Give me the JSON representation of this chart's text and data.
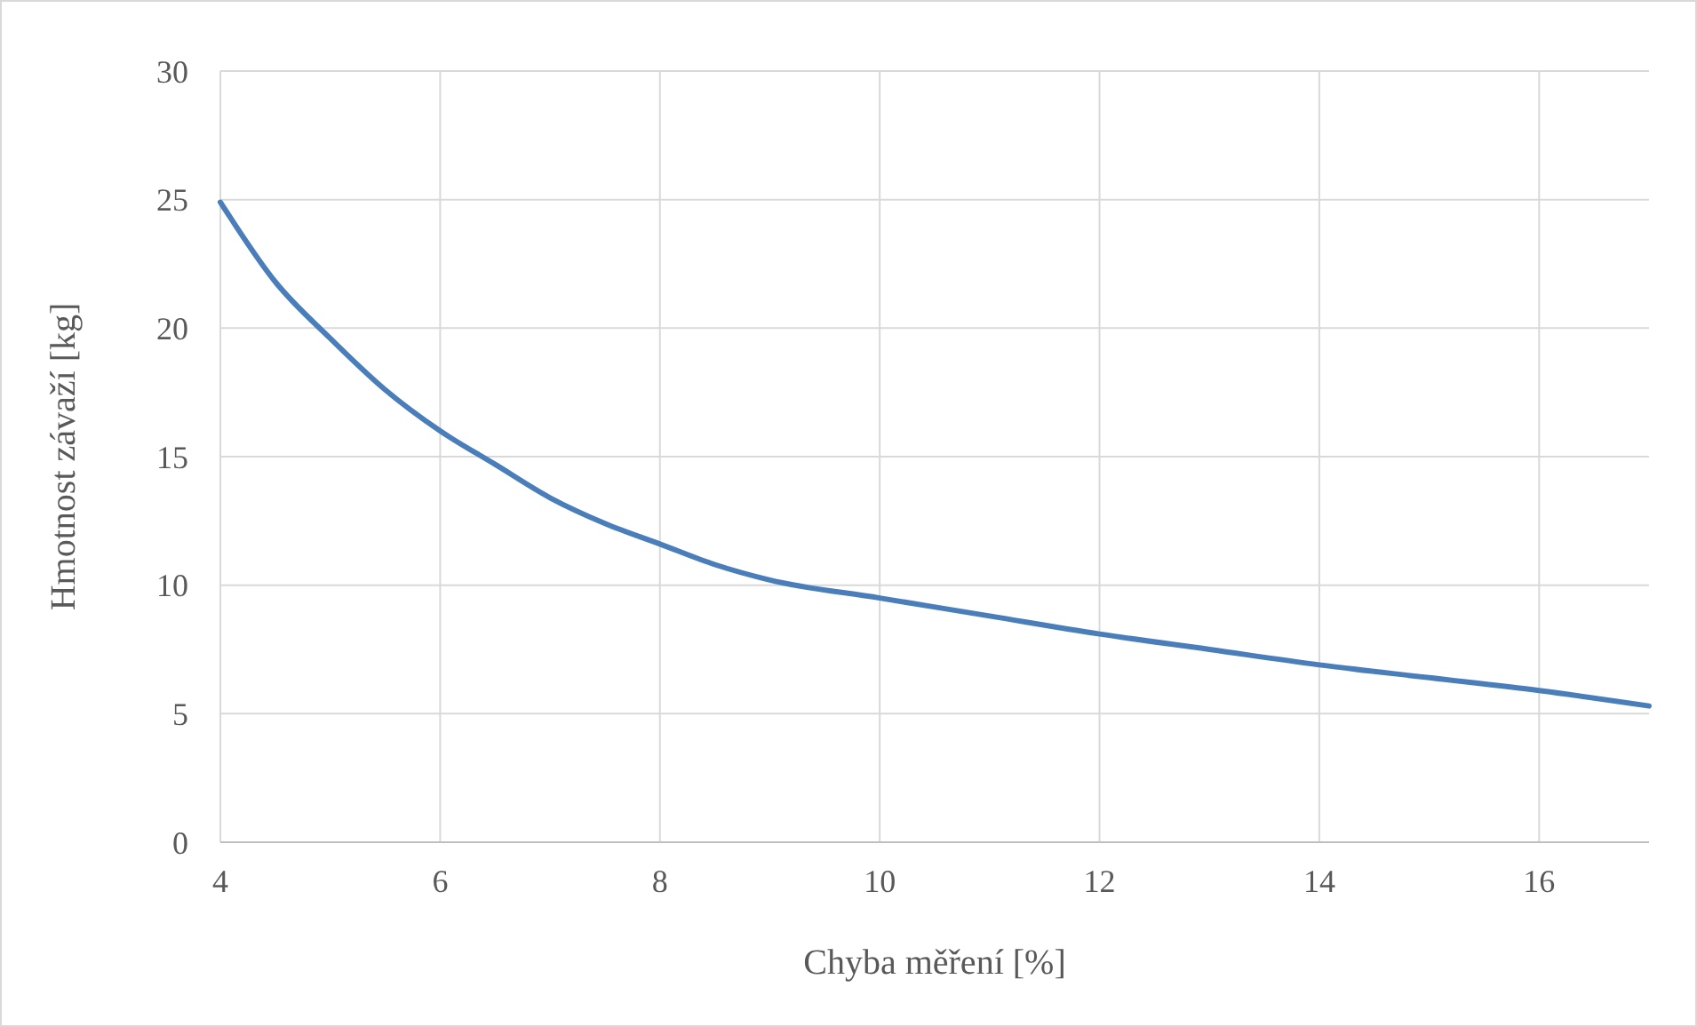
{
  "chart_data": {
    "type": "line",
    "xlabel": "Chyba měření [%]",
    "ylabel": "Hmotnost závaží [kg]",
    "xlim": [
      4,
      17
    ],
    "xticks": [
      4,
      6,
      8,
      10,
      12,
      14,
      16
    ],
    "ylim": [
      0,
      30
    ],
    "yticks": [
      0,
      5,
      10,
      15,
      20,
      25,
      30
    ],
    "grid": true,
    "series": [
      {
        "color": "#4a7ebb",
        "x": [
          4,
          4.5,
          5,
          5.5,
          6,
          6.5,
          7,
          7.5,
          8,
          8.5,
          9,
          10,
          11,
          12,
          13,
          14,
          15,
          16,
          17
        ],
        "values": [
          24.9,
          21.8,
          19.6,
          17.6,
          16.0,
          14.7,
          13.4,
          12.4,
          11.6,
          10.8,
          10.2,
          9.5,
          8.8,
          8.1,
          7.5,
          6.9,
          6.4,
          5.9,
          5.3
        ]
      }
    ]
  }
}
